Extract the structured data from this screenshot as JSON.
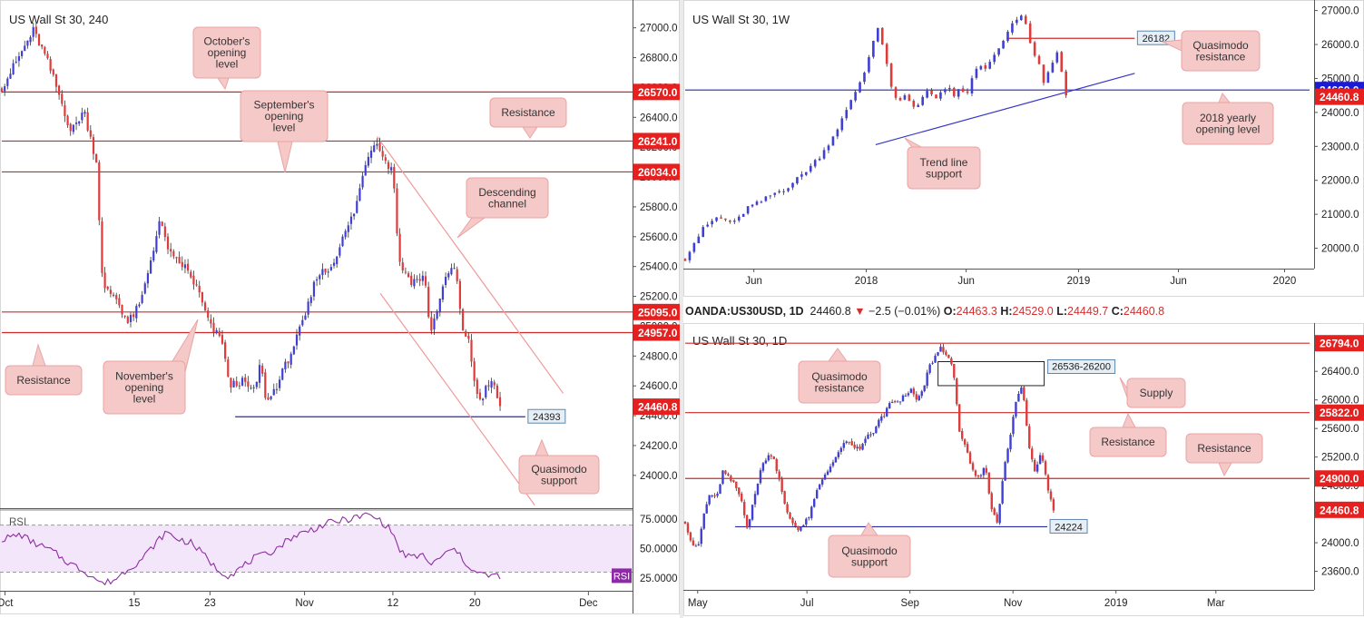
{
  "instrument_header": {
    "symbol": "OANDA:US30USD, 1D",
    "last": "24460.8",
    "change": "−2.5 (−0.01%)",
    "open_label": "O:",
    "open": "24463.3",
    "high_label": "H:",
    "high": "24529.0",
    "low_label": "L:",
    "low": "24449.7",
    "close_label": "C:",
    "close": "24460.8"
  },
  "colors": {
    "bull": "#3f3fd6",
    "bear": "#e03a3a",
    "red_level": "#cc2b2b",
    "blue_level": "#2a2aa8",
    "callout_bg": "#f6c9c9",
    "callout_border": "#e9a4a4",
    "rsi_line": "#8c2ea0",
    "rsi_fill": "#f3e6fb"
  },
  "chart_data": [
    {
      "id": "h4",
      "type": "candlestick",
      "title": "US Wall St 30, 240",
      "y_range": [
        23780,
        27150
      ],
      "y_ticks": [
        27000,
        26800,
        26600,
        26400,
        26200,
        26000,
        25800,
        25600,
        25400,
        25200,
        25000,
        24800,
        24600,
        24400,
        24200,
        24000
      ],
      "y_tick_labels": [
        "27000.0",
        "26800.0",
        "26600.0",
        "26400.0",
        "26200.0",
        "26000.0",
        "25800.0",
        "25600.0",
        "25400.0",
        "25200.0",
        "25000.0",
        "24800.0",
        "24600.0",
        "24400.0",
        "24200.0",
        "24000.0"
      ],
      "x_range": [
        0,
        100
      ],
      "x_ticks": [
        {
          "x": 0.5,
          "label": "Oct"
        },
        {
          "x": 21,
          "label": "15"
        },
        {
          "x": 33,
          "label": "23"
        },
        {
          "x": 48,
          "label": "Nov"
        },
        {
          "x": 62,
          "label": "12"
        },
        {
          "x": 75,
          "label": "20"
        },
        {
          "x": 93,
          "label": "Dec"
        }
      ],
      "levels": [
        {
          "value": 26570,
          "label": "26570.0",
          "color": "red",
          "x0": 0,
          "x1": 100
        },
        {
          "value": 26241,
          "label": "26241.0",
          "color": "red",
          "x0": 0,
          "x1": 100
        },
        {
          "value": 26034,
          "label": "26034.0",
          "color": "red",
          "x0": 0,
          "x1": 100
        },
        {
          "value": 25095,
          "label": "25095.0",
          "color": "red",
          "x0": 0,
          "x1": 100
        },
        {
          "value": 24957,
          "label": "24957.0",
          "color": "red",
          "x0": 0,
          "x1": 100
        },
        {
          "value": 24393,
          "label": "24393",
          "color": "blue",
          "x0": 37,
          "x1": 83,
          "style": "tag"
        }
      ],
      "last_price": {
        "value": 24460.8,
        "label": "24460.8"
      },
      "lines": [
        {
          "name": "channel-upper",
          "x0": 59.5,
          "y0": 26270,
          "x1": 89,
          "y1": 24550
        },
        {
          "name": "channel-lower",
          "x0": 60,
          "y0": 25220,
          "x1": 84.5,
          "y1": 23800
        }
      ],
      "anchors": [
        [
          0,
          26600
        ],
        [
          2,
          26750
        ],
        [
          5,
          26980
        ],
        [
          7,
          26800
        ],
        [
          9,
          26560
        ],
        [
          11,
          26300
        ],
        [
          13,
          26450
        ],
        [
          15,
          26100
        ],
        [
          16,
          25250
        ],
        [
          18,
          25200
        ],
        [
          20,
          25020
        ],
        [
          22,
          25150
        ],
        [
          25,
          25700
        ],
        [
          27,
          25450
        ],
        [
          29,
          25400
        ],
        [
          31,
          25250
        ],
        [
          33,
          25000
        ],
        [
          35,
          24900
        ],
        [
          36,
          24600
        ],
        [
          38,
          24630
        ],
        [
          40,
          24560
        ],
        [
          41,
          24750
        ],
        [
          42,
          24480
        ],
        [
          44,
          24640
        ],
        [
          46,
          24840
        ],
        [
          48,
          25050
        ],
        [
          50,
          25350
        ],
        [
          52,
          25380
        ],
        [
          54,
          25580
        ],
        [
          56,
          25780
        ],
        [
          58,
          26150
        ],
        [
          59.5,
          26250
        ],
        [
          61,
          26080
        ],
        [
          62,
          26060
        ],
        [
          63,
          25420
        ],
        [
          65,
          25300
        ],
        [
          67,
          25330
        ],
        [
          68,
          24950
        ],
        [
          69.5,
          25200
        ],
        [
          71,
          25380
        ],
        [
          72,
          25380
        ],
        [
          73,
          24950
        ],
        [
          74,
          24930
        ],
        [
          75,
          24580
        ],
        [
          76,
          24500
        ],
        [
          77,
          24620
        ],
        [
          78,
          24600
        ],
        [
          79,
          24460
        ]
      ],
      "annotations": [
        {
          "text": "October's opening level",
          "lines": [
            "October's",
            "opening",
            "level"
          ]
        },
        {
          "text": "September's opening level",
          "lines": [
            "September's",
            "opening",
            "level"
          ]
        },
        {
          "text": "Resistance",
          "lines": [
            "Resistance"
          ]
        },
        {
          "text": "Descending channel",
          "lines": [
            "Descending",
            "channel"
          ]
        },
        {
          "text": "Resistance",
          "lines": [
            "Resistance"
          ]
        },
        {
          "text": "November's opening level",
          "lines": [
            "November's",
            "opening",
            "level"
          ]
        },
        {
          "text": "Quasimodo support",
          "lines": [
            "Quasimodo",
            "support"
          ]
        }
      ],
      "indicator": {
        "name": "RSI",
        "y_range": [
          15,
          82
        ],
        "y_ticks": [
          75,
          50,
          25
        ],
        "y_tick_labels": [
          "75.0000",
          "50.0000",
          "25.0000"
        ],
        "bands": [
          70,
          30
        ],
        "last": {
          "value": 27,
          "label": "RSI"
        },
        "anchors": [
          [
            0,
            58
          ],
          [
            3,
            62
          ],
          [
            5,
            55
          ],
          [
            8,
            48
          ],
          [
            10,
            40
          ],
          [
            12,
            34
          ],
          [
            14,
            28
          ],
          [
            16,
            20
          ],
          [
            18,
            24
          ],
          [
            20,
            33
          ],
          [
            22,
            40
          ],
          [
            24,
            52
          ],
          [
            26,
            64
          ],
          [
            28,
            58
          ],
          [
            30,
            55
          ],
          [
            32,
            45
          ],
          [
            34,
            33
          ],
          [
            36,
            27
          ],
          [
            38,
            34
          ],
          [
            40,
            42
          ],
          [
            42,
            45
          ],
          [
            44,
            52
          ],
          [
            46,
            60
          ],
          [
            48,
            64
          ],
          [
            50,
            68
          ],
          [
            52,
            72
          ],
          [
            54,
            74
          ],
          [
            56,
            76
          ],
          [
            58,
            79
          ],
          [
            60,
            74
          ],
          [
            62,
            64
          ],
          [
            63,
            48
          ],
          [
            65,
            42
          ],
          [
            67,
            45
          ],
          [
            68,
            35
          ],
          [
            70,
            45
          ],
          [
            72,
            50
          ],
          [
            73,
            40
          ],
          [
            74,
            36
          ],
          [
            75,
            30
          ],
          [
            77,
            27
          ],
          [
            79,
            27
          ]
        ]
      }
    },
    {
      "id": "weekly",
      "type": "candlestick",
      "title": "US Wall St 30, 1W",
      "y_range": [
        19400,
        27150
      ],
      "y_ticks": [
        27000,
        26000,
        25000,
        24000,
        23000,
        22000,
        21000,
        20000
      ],
      "y_tick_labels": [
        "27000.0",
        "26000.0",
        "25000.0",
        "24000.0",
        "23000.0",
        "22000.0",
        "21000.0",
        "20000.0"
      ],
      "x_range": [
        0,
        100
      ],
      "x_ticks": [
        {
          "x": 11,
          "label": "Jun"
        },
        {
          "x": 29,
          "label": "2018"
        },
        {
          "x": 45,
          "label": "Jun"
        },
        {
          "x": 63,
          "label": "2019"
        },
        {
          "x": 79,
          "label": "Jun"
        },
        {
          "x": 96,
          "label": "2020"
        }
      ],
      "levels": [
        {
          "value": 24660,
          "label": "24660.0",
          "color": "blue",
          "x0": 0,
          "x1": 100
        },
        {
          "value": 26182,
          "label": "26182",
          "color": "red",
          "x0": 51.5,
          "x1": 72,
          "style": "tag"
        }
      ],
      "last_price": {
        "value": 24460.8,
        "label": "24460.8"
      },
      "lines": [
        {
          "name": "trend-line-support",
          "x0": 30.5,
          "y0": 23050,
          "x1": 72,
          "y1": 25150
        }
      ],
      "anchors": [
        [
          0,
          19700
        ],
        [
          1,
          20050
        ],
        [
          3,
          20600
        ],
        [
          5,
          20900
        ],
        [
          8,
          20750
        ],
        [
          10,
          21200
        ],
        [
          12,
          21350
        ],
        [
          14,
          21600
        ],
        [
          16,
          21750
        ],
        [
          18,
          22050
        ],
        [
          20,
          22400
        ],
        [
          22,
          22800
        ],
        [
          24,
          23400
        ],
        [
          26,
          24100
        ],
        [
          27.5,
          24700
        ],
        [
          29,
          25300
        ],
        [
          30,
          26100
        ],
        [
          31,
          26550
        ],
        [
          32,
          25600
        ],
        [
          33,
          24800
        ],
        [
          34,
          24200
        ],
        [
          35,
          24500
        ],
        [
          36,
          24300
        ],
        [
          37,
          24100
        ],
        [
          38,
          24500
        ],
        [
          39,
          24700
        ],
        [
          40,
          24300
        ],
        [
          41,
          24600
        ],
        [
          42,
          24800
        ],
        [
          43,
          24400
        ],
        [
          44,
          24700
        ],
        [
          45,
          24500
        ],
        [
          46,
          25000
        ],
        [
          47,
          25400
        ],
        [
          48,
          25300
        ],
        [
          49,
          25500
        ],
        [
          50,
          25800
        ],
        [
          51,
          26100
        ],
        [
          52,
          26450
        ],
        [
          53,
          26750
        ],
        [
          54,
          26800
        ],
        [
          55,
          26400
        ],
        [
          55.5,
          25800
        ],
        [
          56.5,
          25500
        ],
        [
          57.5,
          24850
        ],
        [
          58.5,
          25300
        ],
        [
          59.5,
          25900
        ],
        [
          60,
          25400
        ],
        [
          61,
          24460
        ]
      ],
      "annotations": [
        {
          "text": "Quasimodo resistance",
          "lines": [
            "Quasimodo",
            "resistance"
          ]
        },
        {
          "text": "2018 yearly opening level",
          "lines": [
            "2018 yearly",
            "opening level"
          ]
        },
        {
          "text": "Trend line support",
          "lines": [
            "Trend line",
            "support"
          ]
        }
      ]
    },
    {
      "id": "daily",
      "type": "candlestick",
      "title": "US Wall St 30, 1D",
      "y_range": [
        23340,
        27000
      ],
      "y_ticks": [
        26800,
        26400,
        26000,
        25600,
        25200,
        24800,
        24400,
        24000,
        23600
      ],
      "y_tick_labels": [
        "26800.0",
        "26400.0",
        "26000.0",
        "25600.0",
        "25200.0",
        "24800.0",
        "24400.0",
        "24000.0",
        "23600.0"
      ],
      "x_range": [
        0,
        100
      ],
      "x_ticks": [
        {
          "x": 2,
          "label": "May"
        },
        {
          "x": 19.5,
          "label": "Jul"
        },
        {
          "x": 36,
          "label": "Sep"
        },
        {
          "x": 52.5,
          "label": "Nov"
        },
        {
          "x": 69,
          "label": "2019"
        },
        {
          "x": 85,
          "label": "Mar"
        }
      ],
      "levels": [
        {
          "value": 26794,
          "label": "26794.0",
          "color": "red",
          "x0": 0,
          "x1": 100
        },
        {
          "value": 25822,
          "label": "25822.0",
          "color": "red",
          "x0": 0,
          "x1": 100
        },
        {
          "value": 24900,
          "label": "24900.0",
          "color": "red",
          "x0": 0,
          "x1": 100
        },
        {
          "value": 24224,
          "label": "24224",
          "color": "blue",
          "x0": 8,
          "x1": 58,
          "style": "tag"
        }
      ],
      "last_price": {
        "value": 24460.8,
        "label": "24460.8"
      },
      "zones": [
        {
          "name": "supply",
          "top": 26536,
          "bottom": 26200,
          "x0": 40.5,
          "x1": 57.5,
          "label": "26536-26200"
        }
      ],
      "anchors": [
        [
          0,
          24300
        ],
        [
          1,
          24000
        ],
        [
          2,
          23900
        ],
        [
          3,
          24400
        ],
        [
          4,
          24700
        ],
        [
          5,
          24600
        ],
        [
          6,
          25000
        ],
        [
          7,
          24900
        ],
        [
          8,
          24800
        ],
        [
          9,
          24600
        ],
        [
          10,
          24200
        ],
        [
          11,
          24600
        ],
        [
          12,
          25000
        ],
        [
          13,
          25200
        ],
        [
          14,
          25250
        ],
        [
          15,
          24900
        ],
        [
          16,
          24500
        ],
        [
          17,
          24300
        ],
        [
          18,
          24200
        ],
        [
          19,
          24250
        ],
        [
          20,
          24400
        ],
        [
          21,
          24700
        ],
        [
          22,
          24900
        ],
        [
          23,
          25050
        ],
        [
          24,
          25150
        ],
        [
          25,
          25350
        ],
        [
          26,
          25400
        ],
        [
          27,
          25350
        ],
        [
          28,
          25300
        ],
        [
          29,
          25500
        ],
        [
          30,
          25500
        ],
        [
          31,
          25700
        ],
        [
          32,
          25800
        ],
        [
          33,
          26000
        ],
        [
          34,
          25950
        ],
        [
          35,
          26050
        ],
        [
          36,
          26150
        ],
        [
          37,
          26000
        ],
        [
          38,
          26100
        ],
        [
          39,
          26450
        ],
        [
          40,
          26600
        ],
        [
          41,
          26750
        ],
        [
          42,
          26600
        ],
        [
          43,
          26400
        ],
        [
          44,
          25500
        ],
        [
          45,
          25300
        ],
        [
          46,
          25000
        ],
        [
          47,
          24900
        ],
        [
          48,
          25100
        ],
        [
          49,
          24500
        ],
        [
          50,
          24300
        ],
        [
          51,
          25000
        ],
        [
          52,
          25450
        ],
        [
          53,
          26000
        ],
        [
          54,
          26200
        ],
        [
          55,
          25400
        ],
        [
          56,
          25000
        ],
        [
          57,
          25300
        ],
        [
          58,
          24800
        ],
        [
          59,
          24460
        ]
      ],
      "annotations": [
        {
          "text": "Quasimodo resistance",
          "lines": [
            "Quasimodo",
            "resistance"
          ]
        },
        {
          "text": "Supply",
          "lines": [
            "Supply"
          ]
        },
        {
          "text": "Resistance",
          "lines": [
            "Resistance"
          ]
        },
        {
          "text": "Resistance",
          "lines": [
            "Resistance"
          ]
        },
        {
          "text": "Quasimodo support",
          "lines": [
            "Quasimodo",
            "support"
          ]
        }
      ]
    }
  ]
}
